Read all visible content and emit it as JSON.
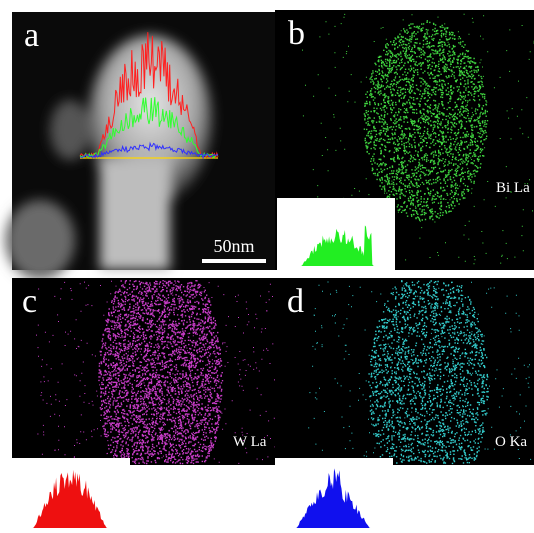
{
  "panels": [
    {
      "label": "a",
      "scale_bar": "50nm"
    },
    {
      "label": "b",
      "element": "Bi La"
    },
    {
      "label": "c",
      "element": "W La"
    },
    {
      "label": "d",
      "element": "O Ka"
    }
  ]
}
